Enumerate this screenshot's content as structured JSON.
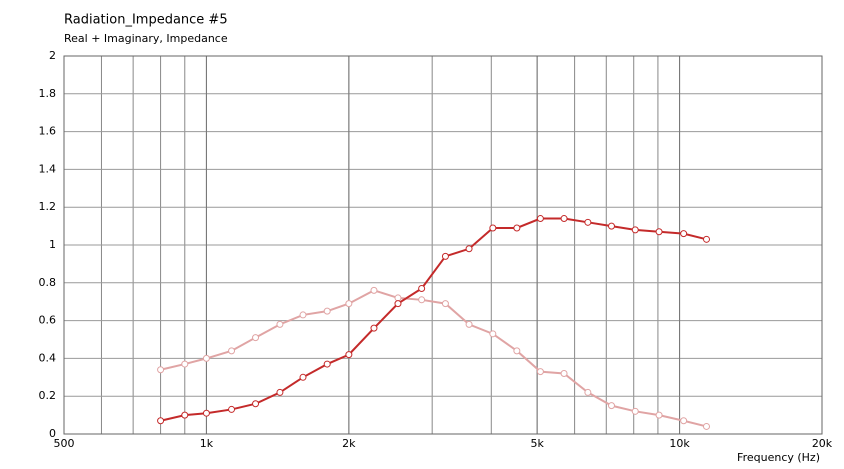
{
  "chart_data": {
    "type": "line",
    "title": "Radiation_Impedance #5",
    "subtitle": "Real + Imaginary, Impedance",
    "x_label": "Frequency  (Hz)",
    "x_scale": "log",
    "grid": true,
    "x": [
      800,
      900,
      1000,
      1130,
      1270,
      1430,
      1600,
      1800,
      2000,
      2260,
      2540,
      2850,
      3200,
      3590,
      4030,
      4530,
      5080,
      5700,
      6400,
      7180,
      8060,
      9050,
      10200,
      11400
    ],
    "series": [
      {
        "name": "Real",
        "color": "#c42a2a",
        "values": [
          0.07,
          0.1,
          0.11,
          0.13,
          0.16,
          0.22,
          0.3,
          0.37,
          0.42,
          0.56,
          0.69,
          0.77,
          0.94,
          0.98,
          1.09,
          1.09,
          1.14,
          1.14,
          1.12,
          1.1,
          1.08,
          1.07,
          1.06,
          1.03
        ]
      },
      {
        "name": "Imaginary",
        "color": "#e0a4a4",
        "values": [
          0.34,
          0.37,
          0.4,
          0.44,
          0.51,
          0.58,
          0.63,
          0.65,
          0.69,
          0.76,
          0.72,
          0.71,
          0.69,
          0.58,
          0.53,
          0.44,
          0.33,
          0.32,
          0.22,
          0.15,
          0.12,
          0.1,
          0.07,
          0.04
        ]
      }
    ],
    "xlim": [
      500,
      20000
    ],
    "xticks": [
      500,
      {
        "value": 1000,
        "label": "1k"
      },
      {
        "value": 2000,
        "label": "2k"
      },
      {
        "value": 5000,
        "label": "5k"
      },
      {
        "value": 10000,
        "label": "10k"
      },
      {
        "value": 20000,
        "label": "20k"
      }
    ],
    "ylim": [
      0,
      2
    ],
    "yticks": [
      0,
      0.2,
      0.4,
      0.6,
      0.8,
      1,
      1.2,
      1.4,
      1.6,
      1.8,
      2
    ]
  }
}
